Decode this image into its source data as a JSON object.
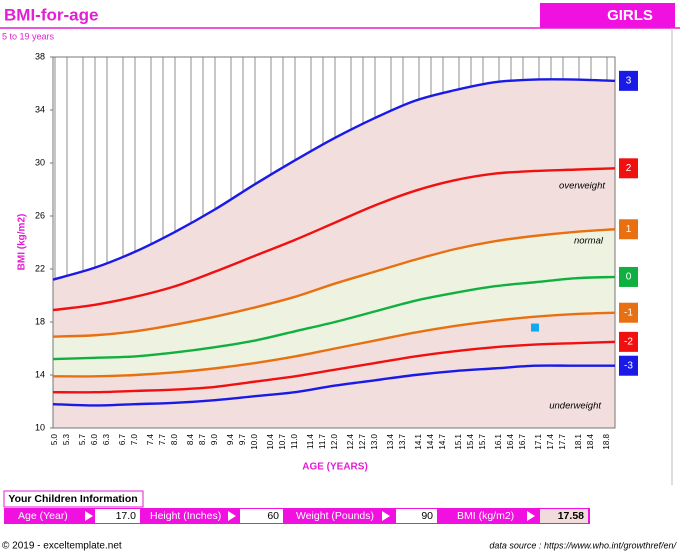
{
  "header": {
    "title": "BMI-for-age",
    "badge": "GIRLS",
    "subtitle": "5 to 19 years"
  },
  "chart_data": {
    "type": "line",
    "x_label": "AGE (YEARS)",
    "y_label": "BMI (kg/m2)",
    "x": [
      5,
      6,
      7,
      8,
      9,
      10,
      11,
      12,
      13,
      14,
      15,
      16,
      17,
      18,
      19
    ],
    "xlim": [
      5,
      19
    ],
    "ylim": [
      10,
      38
    ],
    "yticks": [
      10,
      14,
      18,
      22,
      26,
      30,
      34,
      38
    ],
    "xticks": [
      {
        "value": 5,
        "label": "5.0"
      },
      5.3,
      5.7,
      {
        "value": 6,
        "label": "6.0"
      },
      6.3,
      6.7,
      {
        "value": 7,
        "label": "7.0"
      },
      7.4,
      7.7,
      {
        "value": 8,
        "label": "8.0"
      },
      8.4,
      8.7,
      {
        "value": 9,
        "label": "9.0"
      },
      9.4,
      9.7,
      {
        "value": 10,
        "label": "10.0"
      },
      10.4,
      10.7,
      {
        "value": 11,
        "label": "11.0"
      },
      11.4,
      11.7,
      {
        "value": 12,
        "label": "12.0"
      },
      12.4,
      12.7,
      {
        "value": 13,
        "label": "13.0"
      },
      13.4,
      13.7,
      14.1,
      14.4,
      14.7,
      15.1,
      15.4,
      15.7,
      16.1,
      16.4,
      16.7,
      17.1,
      17.4,
      17.7,
      18.1,
      18.4,
      18.8
    ],
    "grid": true,
    "series": [
      {
        "name": "3",
        "color": "#1a1ae6",
        "values": [
          21.2,
          22.1,
          23.3,
          24.8,
          26.5,
          28.4,
          30.2,
          31.9,
          33.4,
          34.7,
          35.5,
          36.1,
          36.3,
          36.3,
          36.2
        ]
      },
      {
        "name": "2",
        "color": "#f01010",
        "values": [
          18.9,
          19.3,
          19.9,
          20.7,
          21.8,
          23.0,
          24.2,
          25.5,
          26.8,
          27.9,
          28.7,
          29.2,
          29.4,
          29.5,
          29.6
        ]
      },
      {
        "name": "1",
        "color": "#e87010",
        "values": [
          16.9,
          17.0,
          17.3,
          17.8,
          18.4,
          19.1,
          19.9,
          20.9,
          21.8,
          22.7,
          23.5,
          24.1,
          24.5,
          24.8,
          25.0
        ]
      },
      {
        "name": "0",
        "color": "#10b040",
        "values": [
          15.2,
          15.3,
          15.4,
          15.7,
          16.1,
          16.6,
          17.3,
          18.0,
          18.8,
          19.6,
          20.2,
          20.7,
          21.0,
          21.3,
          21.4
        ]
      },
      {
        "name": "-1",
        "color": "#e87010",
        "values": [
          13.9,
          13.9,
          14.0,
          14.2,
          14.5,
          14.9,
          15.4,
          16.0,
          16.6,
          17.2,
          17.7,
          18.1,
          18.4,
          18.6,
          18.7
        ]
      },
      {
        "name": "-2",
        "color": "#f01010",
        "values": [
          12.7,
          12.7,
          12.8,
          12.9,
          13.1,
          13.5,
          13.9,
          14.4,
          14.9,
          15.4,
          15.8,
          16.1,
          16.3,
          16.4,
          16.5
        ]
      },
      {
        "name": "-3",
        "color": "#1a1ae6",
        "values": [
          11.8,
          11.7,
          11.8,
          11.9,
          12.1,
          12.4,
          12.7,
          13.2,
          13.6,
          14.0,
          14.3,
          14.5,
          14.7,
          14.7,
          14.7
        ]
      }
    ],
    "point": {
      "x": 17.0,
      "y": 17.58,
      "color": "#10a8f0"
    },
    "annotations": [
      "overweight",
      "normal",
      "underweight"
    ]
  },
  "info": {
    "title": "Your Children Information",
    "fields": [
      {
        "label": "Age (Year)",
        "value": "17.0"
      },
      {
        "label": "Height (Inches)",
        "value": "60"
      },
      {
        "label": "Weight (Pounds)",
        "value": "90"
      },
      {
        "label": "BMI (kg/m2)",
        "value": "17.58"
      }
    ]
  },
  "footer": {
    "copyright": "© 2019 - exceltemplate.net",
    "source": "data source : https://www.who.int/growthref/en/"
  }
}
